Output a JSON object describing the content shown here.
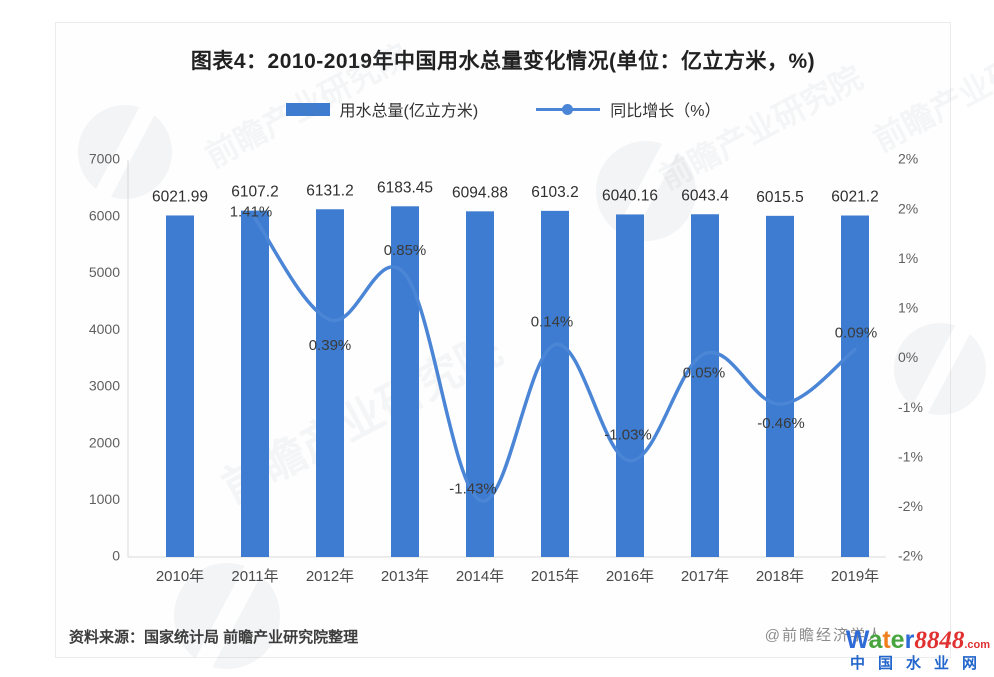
{
  "title": "图表4：2010-2019年中国用水总量变化情况(单位：亿立方米，%)",
  "legend": {
    "bar_label": "用水总量(亿立方米)",
    "line_label": "同比增长（%）"
  },
  "chart_data": {
    "type": "combo_bar_line",
    "title": "图表4：2010-2019年中国用水总量变化情况(单位：亿立方米，%)",
    "categories": [
      "2010年",
      "2011年",
      "2012年",
      "2013年",
      "2014年",
      "2015年",
      "2016年",
      "2017年",
      "2018年",
      "2019年"
    ],
    "series": [
      {
        "name": "用水总量(亿立方米)",
        "type": "bar",
        "values": [
          6021.99,
          6107.2,
          6131.2,
          6183.45,
          6094.88,
          6103.2,
          6040.16,
          6043.4,
          6015.5,
          6021.2
        ],
        "labels": [
          "6021.99",
          "6107.2",
          "6131.2",
          "6183.45",
          "6094.88",
          "6103.2",
          "6040.16",
          "6043.4",
          "6015.5",
          "6021.2"
        ]
      },
      {
        "name": "同比增长（%）",
        "type": "line",
        "start_index": 1,
        "values": [
          1.41,
          0.39,
          0.85,
          -1.43,
          0.14,
          -1.03,
          0.05,
          -0.46,
          0.09
        ],
        "labels": [
          "1.41%",
          "0.39%",
          "0.85%",
          "-1.43%",
          "0.14%",
          "-1.03%",
          "0.05%",
          "-0.46%",
          "0.09%"
        ],
        "label_offsets": [
          [
            -4,
            -6
          ],
          [
            0,
            26
          ],
          [
            0,
            -23
          ],
          [
            -7,
            -11
          ],
          [
            -3,
            -22
          ],
          [
            -2,
            -25
          ],
          [
            -1,
            20
          ],
          [
            1,
            20
          ],
          [
            1,
            -16
          ]
        ]
      }
    ],
    "left_axis": {
      "min": 0,
      "max": 7000,
      "ticks": [
        "7000",
        "6000",
        "5000",
        "4000",
        "3000",
        "2000",
        "1000",
        "0"
      ]
    },
    "right_axis": {
      "min": -2,
      "max": 2,
      "ticks": [
        "2%",
        "2%",
        "1%",
        "1%",
        "0%",
        "-1%",
        "-1%",
        "-2%",
        "-2%"
      ]
    },
    "grid": false,
    "legend_position": "top"
  },
  "footer": {
    "source": "资料来源：国家统计局 前瞻产业研究院整理",
    "credit": "@前瞻经济学人"
  },
  "sitemark": {
    "letters": [
      {
        "t": "W",
        "c": "#2e6bd6"
      },
      {
        "t": "a",
        "c": "#46a53c"
      },
      {
        "t": "t",
        "c": "#f07f1e"
      },
      {
        "t": "e",
        "c": "#46a53c"
      },
      {
        "t": "r",
        "c": "#2e6bd6"
      }
    ],
    "number": "8848",
    "dotcom": ".com",
    "site_name": "中国水业网",
    "number_color": "#e03030"
  },
  "watermark": {
    "text": "前瞻产业研究院",
    "logo": "前瞻"
  },
  "colors": {
    "bar": "#3d7cd0",
    "line": "#4a85d6",
    "bar_value_label": "#2f2f2f",
    "line_value_label": "#3a3a3a",
    "axis_tick": "#5f5f5f",
    "x_label": "#4a4a4a",
    "axis_line": "#d9d9d9"
  }
}
